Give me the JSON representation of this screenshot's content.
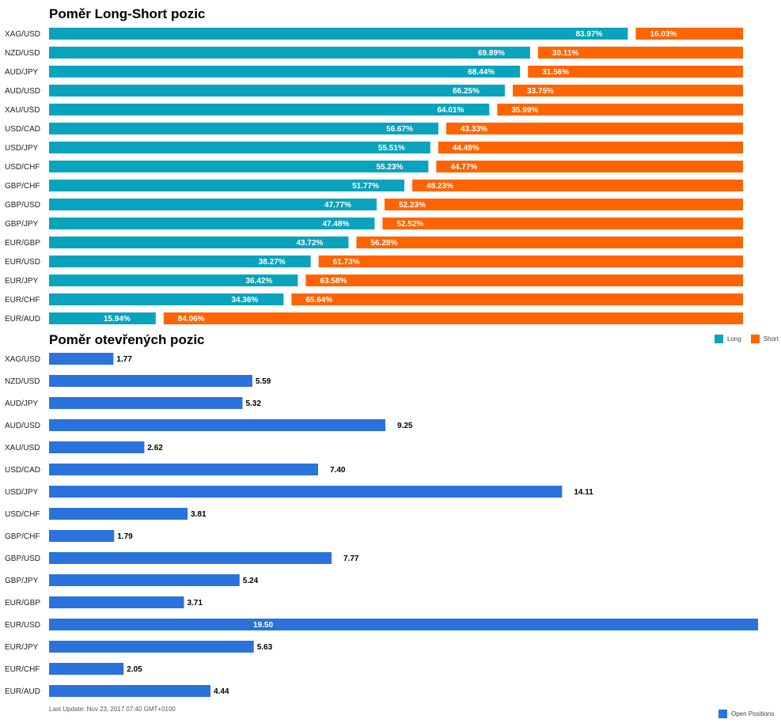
{
  "colors": {
    "long": "#0aa3bd",
    "short": "#ff6400",
    "open": "#2a72dc"
  },
  "chart_data": [
    {
      "type": "bar",
      "orientation": "horizontal",
      "stacked": true,
      "title": "Poměr Long-Short pozic",
      "categories": [
        "XAG/USD",
        "NZD/USD",
        "AUD/JPY",
        "AUD/USD",
        "XAU/USD",
        "USD/CAD",
        "USD/JPY",
        "USD/CHF",
        "GBP/CHF",
        "GBP/USD",
        "GBP/JPY",
        "EUR/GBP",
        "EUR/USD",
        "EUR/JPY",
        "EUR/CHF",
        "EUR/AUD"
      ],
      "series": [
        {
          "name": "Long",
          "values": [
            83.97,
            69.89,
            68.44,
            66.25,
            64.01,
            56.67,
            55.51,
            55.23,
            51.77,
            47.77,
            47.48,
            43.72,
            38.27,
            36.42,
            34.36,
            15.94
          ],
          "labels": [
            "83.97%",
            "69.89%",
            "68.44%",
            "66.25%",
            "64.01%",
            "56.67%",
            "55.51%",
            "55.23%",
            "51.77%",
            "47.77%",
            "47.48%",
            "43.72%",
            "38.27%",
            "36.42%",
            "34.36%",
            "15.94%"
          ]
        },
        {
          "name": "Short",
          "values": [
            16.03,
            30.11,
            31.56,
            33.75,
            35.99,
            43.33,
            44.49,
            44.77,
            48.23,
            52.23,
            52.52,
            56.28,
            61.73,
            63.58,
            65.64,
            84.06
          ],
          "labels": [
            "16.03%",
            "30.11%",
            "31.56%",
            "33.75%",
            "35.99%",
            "43.33%",
            "44.49%",
            "44.77%",
            "48.23%",
            "52.23%",
            "52.52%",
            "56.28%",
            "61.73%",
            "63.58%",
            "65.64%",
            "84.06%"
          ]
        }
      ],
      "xlim": [
        0,
        100
      ],
      "legend": "bottom-right",
      "grid": false
    },
    {
      "type": "bar",
      "orientation": "horizontal",
      "title": "Poměr otevřených pozic",
      "categories": [
        "XAG/USD",
        "NZD/USD",
        "AUD/JPY",
        "AUD/USD",
        "XAU/USD",
        "USD/CAD",
        "USD/JPY",
        "USD/CHF",
        "GBP/CHF",
        "GBP/USD",
        "GBP/JPY",
        "EUR/GBP",
        "EUR/USD",
        "EUR/JPY",
        "EUR/CHF",
        "EUR/AUD"
      ],
      "series": [
        {
          "name": "Open Positions",
          "values": [
            1.77,
            5.59,
            5.32,
            9.25,
            2.62,
            7.4,
            14.11,
            3.81,
            1.79,
            7.77,
            5.24,
            3.71,
            19.5,
            5.63,
            2.05,
            4.44
          ],
          "labels": [
            "1.77",
            "5.59",
            "5.32",
            "9.25",
            "2.62",
            "7.40",
            "14.11",
            "3.81",
            "1.79",
            "7.77",
            "5.24",
            "3.71",
            "19.50",
            "5.63",
            "2.05",
            "4.44"
          ]
        }
      ],
      "xlim": [
        0,
        19.5
      ],
      "legend": "bottom-right",
      "grid": false
    }
  ],
  "footer": {
    "last_update": "Last Update: Nov 23, 2017 07:40 GMT+0100"
  }
}
